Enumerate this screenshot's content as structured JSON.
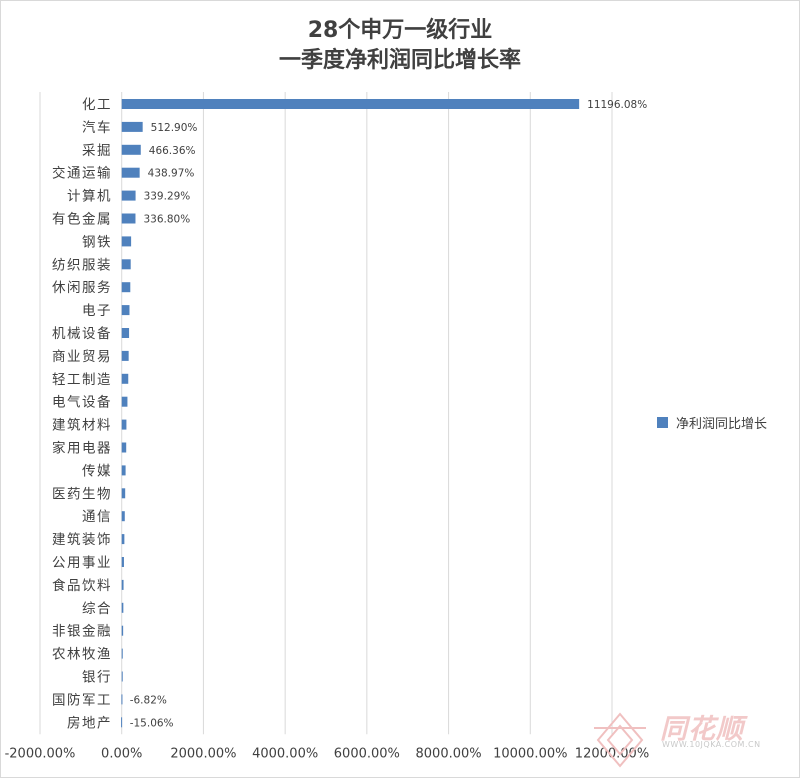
{
  "chart_data": {
    "type": "bar",
    "orientation": "horizontal",
    "title_line1": "28个申万一级行业",
    "title_line2": "一季度净利润同比增长率",
    "categories": [
      "化工",
      "汽车",
      "采掘",
      "交通运输",
      "计算机",
      "有色金属",
      "钢铁",
      "纺织服装",
      "休闲服务",
      "电子",
      "机械设备",
      "商业贸易",
      "轻工制造",
      "电气设备",
      "建筑材料",
      "家用电器",
      "传媒",
      "医药生物",
      "通信",
      "建筑装饰",
      "公用事业",
      "食品饮料",
      "综合",
      "非银金融",
      "农林牧渔",
      "银行",
      "国防军工",
      "房地产"
    ],
    "series": [
      {
        "name": "净利润同比增长",
        "color": "#4f81bd",
        "values": [
          11196.08,
          512.9,
          466.36,
          438.97,
          339.29,
          336.8,
          230,
          220,
          210,
          190,
          180,
          170,
          160,
          140,
          115,
          110,
          95,
          85,
          75,
          65,
          55,
          45,
          40,
          35,
          25,
          15,
          -6.82,
          -15.06
        ],
        "data_labels": [
          "11196.08%",
          "512.90%",
          "466.36%",
          "438.97%",
          "339.29%",
          "336.80%",
          "",
          "",
          "",
          "",
          "",
          "",
          "",
          "",
          "",
          "",
          "",
          "",
          "",
          "",
          "",
          "",
          "",
          "",
          "",
          "",
          "-6.82%",
          "-15.06%"
        ]
      }
    ],
    "x_ticks": [
      -2000,
      0,
      2000,
      4000,
      6000,
      8000,
      10000,
      12000
    ],
    "x_tick_labels": [
      "-2000.00%",
      "0.00%",
      "2000.00%",
      "4000.00%",
      "6000.00%",
      "8000.00%",
      "10000.00%",
      "12000.00%"
    ],
    "xlim": [
      -2000,
      12000
    ],
    "grid": true,
    "legend_position": "right"
  },
  "watermark": {
    "brand": "同花顺",
    "url": "WWW.10JQKA.COM.CN"
  }
}
